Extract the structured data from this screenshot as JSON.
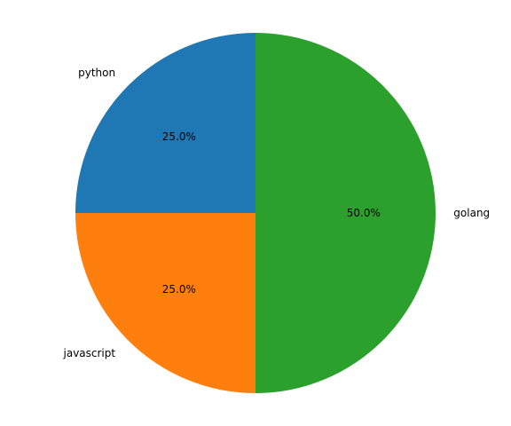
{
  "chart_data": {
    "type": "pie",
    "categories": [
      "python",
      "javascript",
      "golang"
    ],
    "values": [
      25,
      25,
      50
    ],
    "percent_labels": [
      "25.0%",
      "25.0%",
      "50.0%"
    ],
    "colors": [
      "#1f77b4",
      "#ff7f0e",
      "#2ca02c"
    ],
    "start_angle_deg": 90,
    "direction": "counterclockwise",
    "title": "",
    "legend": "none"
  }
}
